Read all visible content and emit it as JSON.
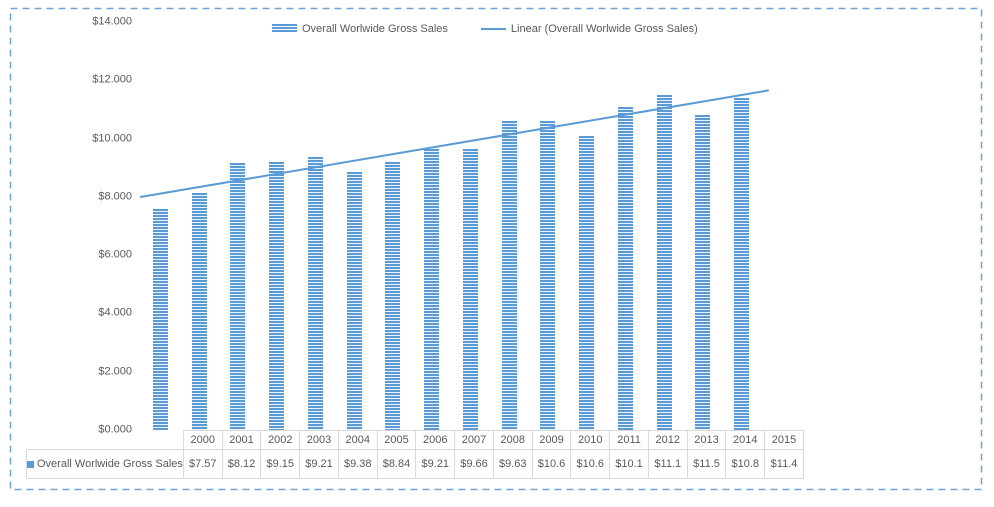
{
  "legend": {
    "series_label": "Overall Worlwide Gross Sales",
    "trendline_label": "Linear (Overall Worlwide Gross Sales)"
  },
  "chart_data": {
    "type": "bar",
    "title": "",
    "series_name": "Overall Worlwide Gross Sales",
    "categories": [
      "2000",
      "2001",
      "2002",
      "2003",
      "2004",
      "2005",
      "2006",
      "2007",
      "2008",
      "2009",
      "2010",
      "2011",
      "2012",
      "2013",
      "2014",
      "2015"
    ],
    "values": [
      7.57,
      8.12,
      9.15,
      9.21,
      9.38,
      8.84,
      9.21,
      9.66,
      9.63,
      10.6,
      10.6,
      10.1,
      11.1,
      11.5,
      10.8,
      11.4
    ],
    "value_labels": [
      "$7.57",
      "$8.12",
      "$9.15",
      "$9.21",
      "$9.38",
      "$8.84",
      "$9.21",
      "$9.66",
      "$9.63",
      "$10.6",
      "$10.6",
      "$10.1",
      "$11.1",
      "$11.5",
      "$10.8",
      "$11.4"
    ],
    "y_ticks": [
      "$14.000",
      "$12.000",
      "$10.000",
      "$8.000",
      "$6.000",
      "$4.000",
      "$2.000",
      "$0.000"
    ],
    "ylim": [
      0,
      14
    ],
    "grid": false,
    "legend_position": "top",
    "data_table_shown": true,
    "trendline": {
      "type": "linear",
      "start_value": 8.0,
      "end_value": 11.65
    },
    "colors": {
      "bar": "#5b9bd5",
      "bar_stripe_gap": "#e9f1fa",
      "trendline": "#5b9bd5",
      "selection_border": "#6ea4d8",
      "text": "#595959",
      "table_border": "#d9d9d9"
    }
  }
}
